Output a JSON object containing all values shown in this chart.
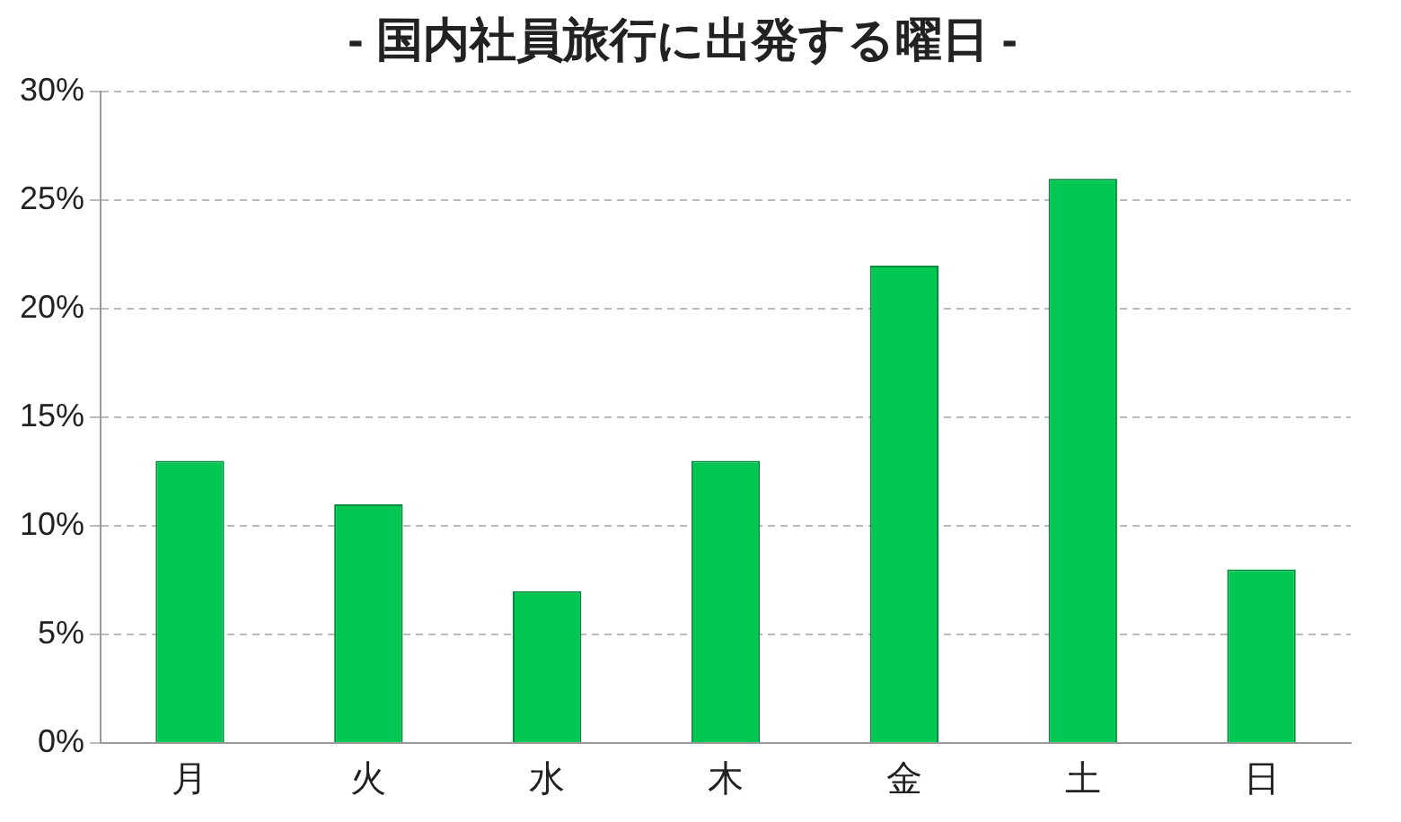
{
  "chart_data": {
    "type": "bar",
    "title": "- 国内社員旅行に出発する曜日 -",
    "categories": [
      "月",
      "火",
      "水",
      "木",
      "金",
      "土",
      "日"
    ],
    "values": [
      13,
      11,
      7,
      13,
      22,
      26,
      8
    ],
    "color": "#00c853",
    "ylim": [
      0,
      30
    ],
    "yticks": [
      {
        "value": 0,
        "label": "0%"
      },
      {
        "value": 5,
        "label": "5%"
      },
      {
        "value": 10,
        "label": "10%"
      },
      {
        "value": 15,
        "label": "15%"
      },
      {
        "value": 20,
        "label": "20%"
      },
      {
        "value": 25,
        "label": "25%"
      },
      {
        "value": 30,
        "label": "30%"
      }
    ],
    "grid": "y",
    "legend": false
  }
}
